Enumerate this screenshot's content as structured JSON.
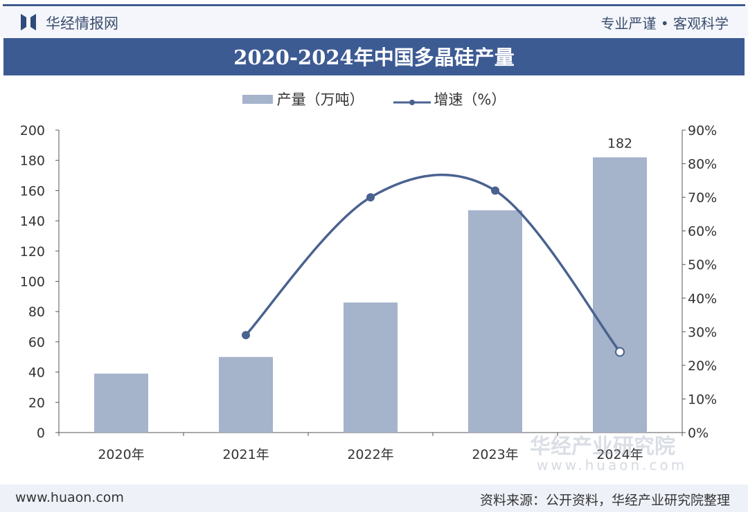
{
  "header": {
    "brand": "华经情报网",
    "slogan": "专业严谨 • 客观科学"
  },
  "title": "2020-2024年中国多晶硅产量",
  "footer": {
    "site": "www.huaon.com",
    "source": "资料来源：公开资料，华经产业研究院整理"
  },
  "watermark": {
    "name": "华经产业研究院",
    "url": "www.huaon.com"
  },
  "colors": {
    "bar": "#a5b3cb",
    "line": "#4a6290",
    "title_bg": "#3d5b93"
  },
  "chart_data": {
    "type": "bar+line",
    "title": "2020-2024年中国多晶硅产量",
    "categories": [
      "2020年",
      "2021年",
      "2022年",
      "2023年",
      "2024年"
    ],
    "series": [
      {
        "name": "产量（万吨）",
        "type": "bar",
        "axis": "left",
        "values": [
          39,
          50,
          86,
          147,
          182
        ]
      },
      {
        "name": "增速（%）",
        "type": "line",
        "axis": "right",
        "values": [
          null,
          29,
          70,
          72,
          24
        ]
      }
    ],
    "data_labels": {
      "2024年": "182"
    },
    "left_axis": {
      "ylim": [
        0,
        200
      ],
      "ticks": [
        "0",
        "20",
        "40",
        "60",
        "80",
        "100",
        "120",
        "140",
        "160",
        "180",
        "200"
      ]
    },
    "right_axis": {
      "ylim": [
        0,
        90
      ],
      "ticks": [
        "0%",
        "10%",
        "20%",
        "30%",
        "40%",
        "50%",
        "60%",
        "70%",
        "80%",
        "90%"
      ]
    },
    "legend": "top-center",
    "grid": false
  }
}
